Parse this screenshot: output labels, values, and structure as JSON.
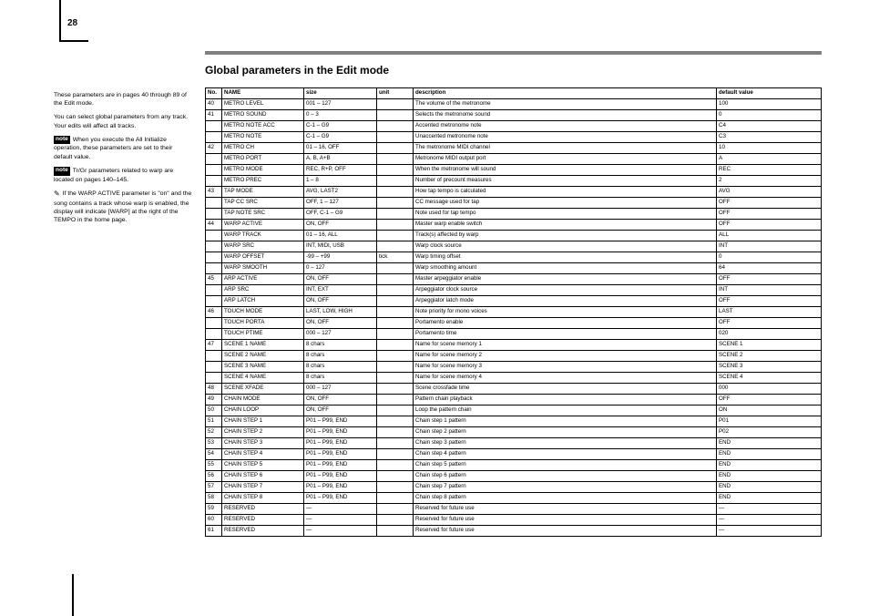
{
  "page_number": "28",
  "section_title": "Global parameters in the Edit mode",
  "sidebar": {
    "intro": "These parameters are in pages 40 through 89 of the Edit mode.",
    "para1": "You can select global parameters from any track. Your edits will affect all tracks.",
    "note1_label": "note",
    "note1": "When you execute the All Initialize operation, these parameters are set to their default value.",
    "note2_label": "note",
    "note2": "Tr/Gr parameters related to warp are located on pages 140–145.",
    "pencil_label": "✎",
    "pencil": "If the WARP ACTIVE parameter is \"on\" and the song contains a track whose warp is enabled, the display will indicate [WARP] at the right of the TEMPO in the home page."
  },
  "table": {
    "headers": [
      "No.",
      "NAME",
      "size",
      "unit",
      "description",
      "default value"
    ],
    "col_widths": [
      "18px",
      "90px",
      "80px",
      "40px",
      "",
      "115px"
    ],
    "rows": [
      [
        "40",
        "METRO LEVEL",
        "001 – 127",
        "",
        "The volume of the metronome",
        "100"
      ],
      [
        "41",
        "METRO SOUND",
        "0 – 3",
        "",
        "Selects the metronome sound",
        "0"
      ],
      [
        "",
        "METRO NOTE ACC",
        "C-1 – G9",
        "",
        "Accented metronome note",
        "C4"
      ],
      [
        "",
        "METRO NOTE",
        "C-1 – G9",
        "",
        "Unaccented metronome note",
        "C3"
      ],
      [
        "42",
        "METRO CH",
        "01 – 16, OFF",
        "",
        "The metronome MIDI channel",
        "10"
      ],
      [
        "",
        "METRO PORT",
        "A, B, A+B",
        "",
        "Metronome MIDI output port",
        "A"
      ],
      [
        "",
        "METRO MODE",
        "REC, R+P, OFF",
        "",
        "When the metronome will sound",
        "REC"
      ],
      [
        "",
        "METRO PREC",
        "1 – 8",
        "",
        "Number of precount measures",
        "2"
      ],
      [
        "43",
        "TAP MODE",
        "AVG, LAST2",
        "",
        "How tap tempo is calculated",
        "AVG"
      ],
      [
        "",
        "TAP CC SRC",
        "OFF, 1 – 127",
        "",
        "CC message used for tap",
        "OFF"
      ],
      [
        "",
        "TAP NOTE SRC",
        "OFF, C-1 – G9",
        "",
        "Note used for tap tempo",
        "OFF"
      ],
      [
        "44",
        "WARP ACTIVE",
        "ON, OFF",
        "",
        "Master warp enable switch",
        "OFF"
      ],
      [
        "",
        "WARP TRACK",
        "01 – 16, ALL",
        "",
        "Track(s) affected by warp",
        "ALL"
      ],
      [
        "",
        "WARP SRC",
        "INT, MIDI, USB",
        "",
        "Warp clock source",
        "INT"
      ],
      [
        "",
        "WARP OFFSET",
        "-99 – +99",
        "tick",
        "Warp timing offset",
        "0"
      ],
      [
        "",
        "WARP SMOOTH",
        "0 – 127",
        "",
        "Warp smoothing amount",
        "64"
      ],
      [
        "45",
        "ARP ACTIVE",
        "ON, OFF",
        "",
        "Master arpeggiator enable",
        "OFF"
      ],
      [
        "",
        "ARP SRC",
        "INT, EXT",
        "",
        "Arpeggiator clock source",
        "INT"
      ],
      [
        "",
        "ARP LATCH",
        "ON, OFF",
        "",
        "Arpeggiator latch mode",
        "OFF"
      ],
      [
        "46",
        "TOUCH MODE",
        "LAST, LOW, HIGH",
        "",
        "Note priority for mono voices",
        "LAST"
      ],
      [
        "",
        "TOUCH PORTA",
        "ON, OFF",
        "",
        "Portamento enable",
        "OFF"
      ],
      [
        "",
        "TOUCH PTIME",
        "000 – 127",
        "",
        "Portamento time",
        "020"
      ],
      [
        "47",
        "SCENE 1 NAME",
        "8 chars",
        "",
        "Name for scene memory 1",
        "SCENE 1"
      ],
      [
        "",
        "SCENE 2 NAME",
        "8 chars",
        "",
        "Name for scene memory 2",
        "SCENE 2"
      ],
      [
        "",
        "SCENE 3 NAME",
        "8 chars",
        "",
        "Name for scene memory 3",
        "SCENE 3"
      ],
      [
        "",
        "SCENE 4 NAME",
        "8 chars",
        "",
        "Name for scene memory 4",
        "SCENE 4"
      ],
      [
        "48",
        "SCENE XFADE",
        "000 – 127",
        "",
        "Scene crossfade time",
        "000"
      ],
      [
        "49",
        "CHAIN MODE",
        "ON, OFF",
        "",
        "Pattern chain playback",
        "OFF"
      ],
      [
        "50",
        "CHAIN LOOP",
        "ON, OFF",
        "",
        "Loop the pattern chain",
        "ON"
      ],
      [
        "51",
        "CHAIN STEP 1",
        "P01 – P99, END",
        "",
        "Chain step 1 pattern",
        "P01"
      ],
      [
        "52",
        "CHAIN STEP 2",
        "P01 – P99, END",
        "",
        "Chain step 2 pattern",
        "P02"
      ],
      [
        "53",
        "CHAIN STEP 3",
        "P01 – P99, END",
        "",
        "Chain step 3 pattern",
        "END"
      ],
      [
        "54",
        "CHAIN STEP 4",
        "P01 – P99, END",
        "",
        "Chain step 4 pattern",
        "END"
      ],
      [
        "55",
        "CHAIN STEP 5",
        "P01 – P99, END",
        "",
        "Chain step 5 pattern",
        "END"
      ],
      [
        "56",
        "CHAIN STEP 6",
        "P01 – P99, END",
        "",
        "Chain step 6 pattern",
        "END"
      ],
      [
        "57",
        "CHAIN STEP 7",
        "P01 – P99, END",
        "",
        "Chain step 7 pattern",
        "END"
      ],
      [
        "58",
        "CHAIN STEP 8",
        "P01 – P99, END",
        "",
        "Chain step 8 pattern",
        "END"
      ],
      [
        "59",
        "RESERVED",
        "—",
        "",
        "Reserved for future use",
        "—"
      ],
      [
        "60",
        "RESERVED",
        "—",
        "",
        "Reserved for future use",
        "—"
      ],
      [
        "61",
        "RESERVED",
        "—",
        "",
        "Reserved for future use",
        "—"
      ]
    ]
  }
}
